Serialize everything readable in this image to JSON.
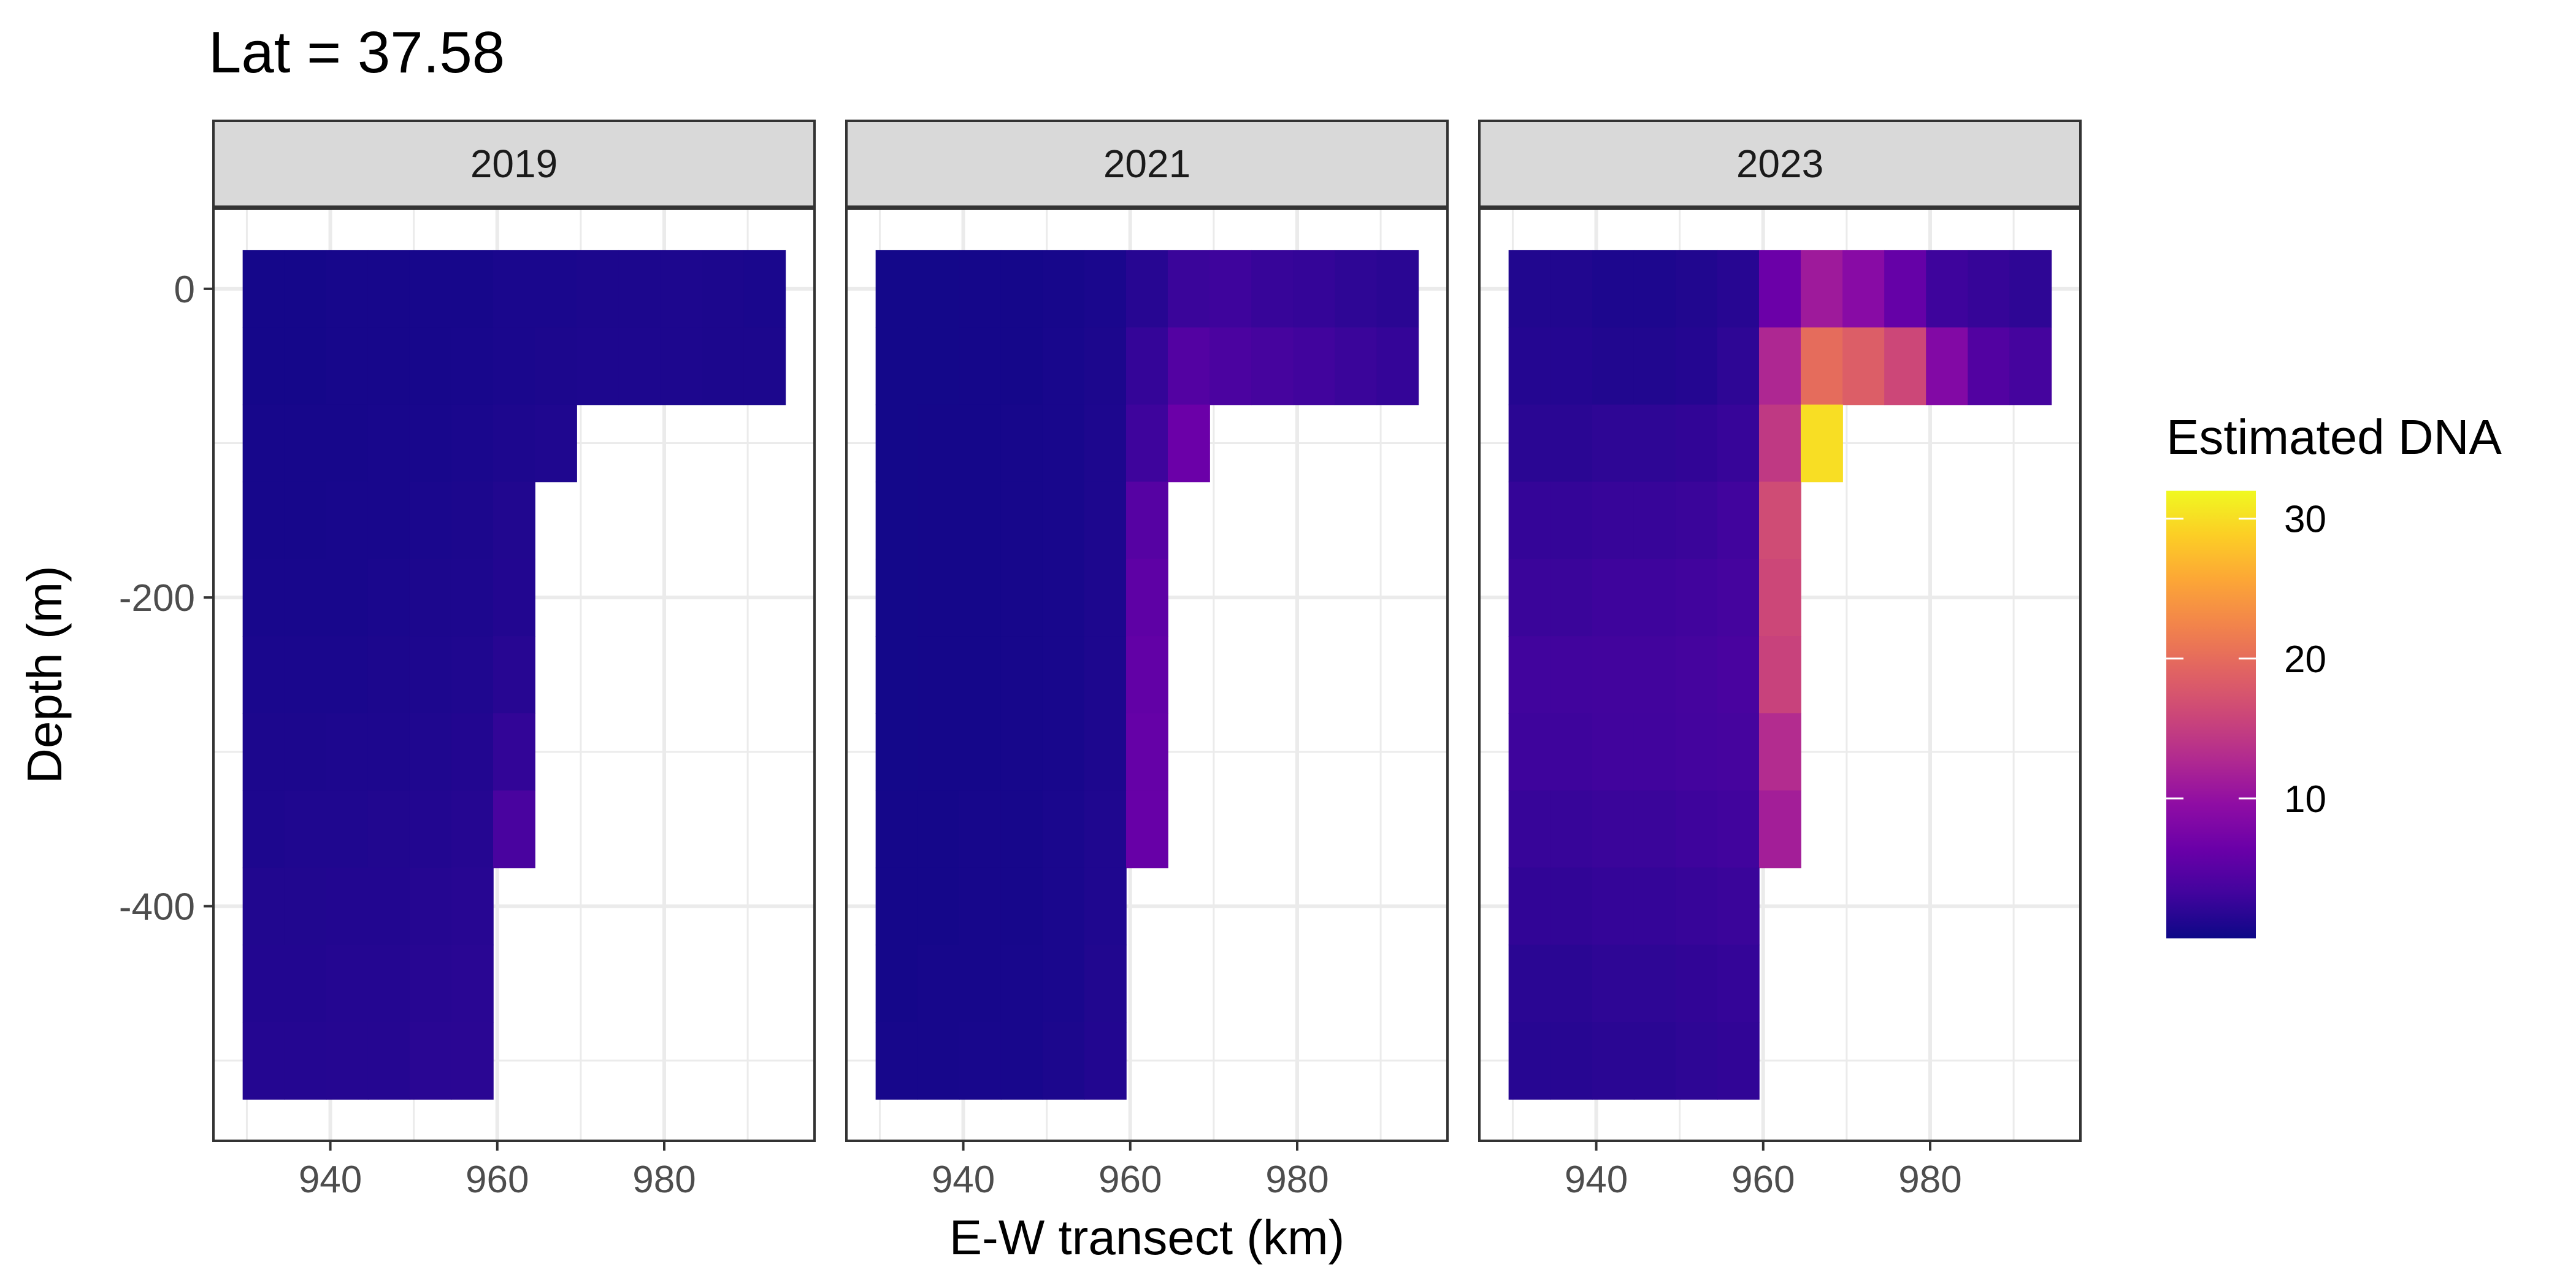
{
  "chart_data": {
    "type": "heatmap",
    "title": "Lat =  37.58",
    "xlabel": "E-W transect (km)",
    "ylabel": "Depth (m)",
    "legend": {
      "title": "Estimated DNA",
      "ticks": [
        10,
        20,
        30
      ],
      "range": [
        0,
        32
      ],
      "placement": "right"
    },
    "colorscale": "plasma",
    "x_ticks": [
      940,
      960,
      980
    ],
    "y_ticks": [
      0,
      -200,
      -400
    ],
    "xlim": [
      926,
      998
    ],
    "ylim": [
      -552,
      52
    ],
    "grid": true,
    "cell_width_km": 5,
    "cell_height_m": 50,
    "columns_x_km": [
      932,
      937,
      942,
      947,
      952,
      957,
      962,
      967,
      972,
      977,
      982,
      987,
      992
    ],
    "rows_depth_m": [
      0,
      -50,
      -100,
      -150,
      -200,
      -250,
      -300,
      -350,
      -400,
      -450,
      -500
    ],
    "panels": [
      {
        "label": "2019",
        "rows": [
          [
            0.5,
            0.5,
            0.6,
            0.6,
            0.6,
            0.6,
            0.8,
            0.8,
            0.9,
            0.9,
            1.0,
            0.9,
            0.8
          ],
          [
            0.5,
            0.5,
            0.6,
            0.6,
            0.6,
            0.7,
            0.8,
            0.9,
            1.0,
            1.0,
            1.0,
            0.9,
            0.9
          ],
          [
            0.6,
            0.6,
            0.6,
            0.7,
            0.7,
            0.8,
            1.0,
            1.1,
            null,
            null,
            null,
            null,
            null
          ],
          [
            0.6,
            0.6,
            0.7,
            0.7,
            0.8,
            0.9,
            1.2,
            null,
            null,
            null,
            null,
            null,
            null
          ],
          [
            0.7,
            0.7,
            0.7,
            0.8,
            0.9,
            1.0,
            1.3,
            null,
            null,
            null,
            null,
            null,
            null
          ],
          [
            0.8,
            0.8,
            0.8,
            0.9,
            1.0,
            1.1,
            1.6,
            null,
            null,
            null,
            null,
            null,
            null
          ],
          [
            0.9,
            0.9,
            1.0,
            1.0,
            1.1,
            1.3,
            2.3,
            null,
            null,
            null,
            null,
            null,
            null
          ],
          [
            1.0,
            1.1,
            1.1,
            1.2,
            1.3,
            1.5,
            3.8,
            null,
            null,
            null,
            null,
            null,
            null
          ],
          [
            1.2,
            1.2,
            1.3,
            1.3,
            1.5,
            1.6,
            null,
            null,
            null,
            null,
            null,
            null,
            null
          ],
          [
            1.3,
            1.3,
            1.4,
            1.4,
            1.6,
            1.7,
            null,
            null,
            null,
            null,
            null,
            null,
            null
          ],
          [
            1.4,
            1.4,
            1.5,
            1.5,
            1.7,
            1.8,
            null,
            null,
            null,
            null,
            null,
            null,
            null
          ]
        ]
      },
      {
        "label": "2021",
        "rows": [
          [
            0.4,
            0.4,
            0.5,
            0.5,
            0.6,
            0.8,
            1.6,
            2.8,
            3.0,
            2.6,
            2.4,
            2.0,
            1.8
          ],
          [
            0.4,
            0.4,
            0.5,
            0.5,
            0.7,
            0.9,
            2.4,
            4.6,
            4.0,
            3.6,
            3.2,
            2.8,
            2.4
          ],
          [
            0.4,
            0.5,
            0.5,
            0.6,
            0.7,
            1.0,
            3.0,
            6.5,
            null,
            null,
            null,
            null,
            null
          ],
          [
            0.4,
            0.5,
            0.5,
            0.6,
            0.7,
            1.0,
            4.8,
            null,
            null,
            null,
            null,
            null,
            null
          ],
          [
            0.4,
            0.5,
            0.5,
            0.6,
            0.7,
            1.0,
            5.5,
            null,
            null,
            null,
            null,
            null,
            null
          ],
          [
            0.4,
            0.5,
            0.5,
            0.6,
            0.7,
            1.0,
            5.8,
            null,
            null,
            null,
            null,
            null,
            null
          ],
          [
            0.4,
            0.5,
            0.5,
            0.6,
            0.7,
            1.0,
            6.0,
            null,
            null,
            null,
            null,
            null,
            null
          ],
          [
            0.5,
            0.5,
            0.6,
            0.6,
            0.8,
            1.1,
            6.2,
            null,
            null,
            null,
            null,
            null,
            null
          ],
          [
            0.5,
            0.5,
            0.6,
            0.6,
            0.8,
            1.1,
            null,
            null,
            null,
            null,
            null,
            null,
            null
          ],
          [
            0.5,
            0.6,
            0.6,
            0.7,
            0.8,
            1.2,
            null,
            null,
            null,
            null,
            null,
            null,
            null
          ],
          [
            0.6,
            0.6,
            0.7,
            0.7,
            0.9,
            1.3,
            null,
            null,
            null,
            null,
            null,
            null,
            null
          ]
        ]
      },
      {
        "label": "2023",
        "rows": [
          [
            1.2,
            1.2,
            1.0,
            1.0,
            1.2,
            1.6,
            6.5,
            11.0,
            9.0,
            6.0,
            3.0,
            2.5,
            2.0
          ],
          [
            1.4,
            1.4,
            1.2,
            1.2,
            1.4,
            2.0,
            12.5,
            20.0,
            18.5,
            16.0,
            8.5,
            4.5,
            3.5
          ],
          [
            1.8,
            1.8,
            2.0,
            2.0,
            2.2,
            2.6,
            14.5,
            30.0,
            null,
            null,
            null,
            null,
            null
          ],
          [
            2.4,
            2.4,
            2.6,
            2.6,
            2.8,
            3.2,
            16.5,
            null,
            null,
            null,
            null,
            null,
            null
          ],
          [
            2.8,
            2.8,
            3.0,
            3.0,
            3.2,
            3.5,
            16.0,
            null,
            null,
            null,
            null,
            null,
            null
          ],
          [
            3.2,
            3.2,
            3.3,
            3.3,
            3.5,
            3.8,
            15.5,
            null,
            null,
            null,
            null,
            null,
            null
          ],
          [
            3.0,
            3.0,
            3.2,
            3.2,
            3.4,
            3.6,
            13.0,
            null,
            null,
            null,
            null,
            null,
            null
          ],
          [
            2.6,
            2.6,
            2.8,
            2.8,
            3.0,
            3.2,
            11.5,
            null,
            null,
            null,
            null,
            null,
            null
          ],
          [
            2.2,
            2.2,
            2.4,
            2.4,
            2.6,
            2.8,
            null,
            null,
            null,
            null,
            null,
            null,
            null
          ],
          [
            1.8,
            1.8,
            2.0,
            2.0,
            2.2,
            2.4,
            null,
            null,
            null,
            null,
            null,
            null,
            null
          ],
          [
            1.6,
            1.6,
            1.8,
            1.8,
            2.0,
            2.2,
            null,
            null,
            null,
            null,
            null,
            null,
            null
          ]
        ]
      }
    ]
  }
}
